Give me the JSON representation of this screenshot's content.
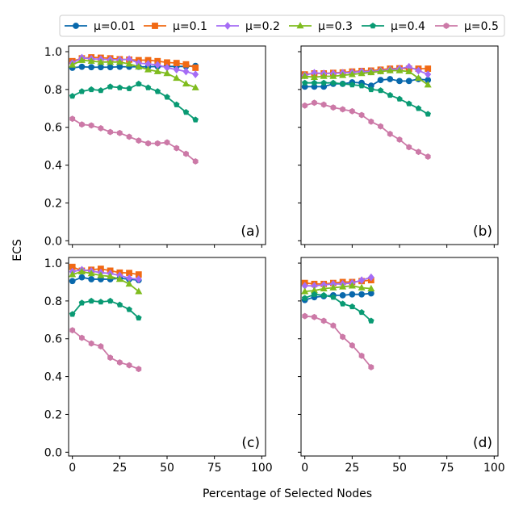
{
  "chart_data": {
    "type": "line",
    "xlabel": "Percentage of Selected Nodes",
    "ylabel": "ECS",
    "xlim": [
      -2,
      102
    ],
    "ylim": [
      -0.02,
      1.03
    ],
    "xticks": [
      0,
      25,
      50,
      75,
      100
    ],
    "yticks": [
      0.0,
      0.2,
      0.4,
      0.6,
      0.8,
      1.0
    ],
    "xtick_labels": [
      "0",
      "25",
      "50",
      "75",
      "100"
    ],
    "ytick_labels": [
      "0.0",
      "0.2",
      "0.4",
      "0.6",
      "0.8",
      "1.0"
    ],
    "grid": false,
    "legend_position": "top",
    "series_styles": [
      {
        "name": "μ=0.01",
        "color": "#0868ac",
        "marker": "circle"
      },
      {
        "name": "μ=0.1",
        "color": "#f16913",
        "marker": "square"
      },
      {
        "name": "μ=0.2",
        "color": "#a56cf5",
        "marker": "diamond"
      },
      {
        "name": "μ=0.3",
        "color": "#7fbc1e",
        "marker": "triangle"
      },
      {
        "name": "μ=0.4",
        "color": "#099a73",
        "marker": "pentagon"
      },
      {
        "name": "μ=0.5",
        "color": "#cc79a7",
        "marker": "hexagon"
      }
    ],
    "panels": [
      {
        "label": "(a)",
        "x": [
          0,
          5,
          10,
          15,
          20,
          25,
          30,
          35,
          40,
          45,
          50,
          55,
          60,
          65
        ],
        "series": [
          {
            "name": "μ=0.01",
            "values": [
              0.915,
              0.92,
              0.918,
              0.918,
              0.918,
              0.92,
              0.92,
              0.92,
              0.92,
              0.922,
              0.922,
              0.922,
              0.922,
              0.925
            ]
          },
          {
            "name": "μ=0.1",
            "values": [
              0.95,
              0.965,
              0.97,
              0.968,
              0.965,
              0.96,
              0.958,
              0.955,
              0.955,
              0.95,
              0.943,
              0.94,
              0.933,
              0.915
            ]
          },
          {
            "name": "μ=0.2",
            "values": [
              0.94,
              0.968,
              0.962,
              0.96,
              0.958,
              0.957,
              0.96,
              0.94,
              0.935,
              0.93,
              0.915,
              0.905,
              0.895,
              0.88
            ]
          },
          {
            "name": "μ=0.3",
            "values": [
              0.93,
              0.955,
              0.95,
              0.945,
              0.945,
              0.945,
              0.935,
              0.92,
              0.905,
              0.895,
              0.885,
              0.86,
              0.83,
              0.81
            ]
          },
          {
            "name": "μ=0.4",
            "values": [
              0.765,
              0.79,
              0.8,
              0.795,
              0.815,
              0.81,
              0.805,
              0.83,
              0.81,
              0.79,
              0.76,
              0.72,
              0.68,
              0.64
            ]
          },
          {
            "name": "μ=0.5",
            "values": [
              0.645,
              0.615,
              0.61,
              0.595,
              0.575,
              0.57,
              0.55,
              0.53,
              0.515,
              0.515,
              0.52,
              0.49,
              0.46,
              0.42
            ]
          }
        ]
      },
      {
        "label": "(b)",
        "x": [
          0,
          5,
          10,
          15,
          20,
          25,
          30,
          35,
          40,
          45,
          50,
          55,
          60,
          65
        ],
        "series": [
          {
            "name": "μ=0.01",
            "values": [
              0.815,
              0.815,
              0.815,
              0.83,
              0.83,
              0.838,
              0.835,
              0.82,
              0.85,
              0.855,
              0.845,
              0.845,
              0.855,
              0.85
            ]
          },
          {
            "name": "μ=0.1",
            "values": [
              0.88,
              0.885,
              0.885,
              0.888,
              0.89,
              0.895,
              0.898,
              0.9,
              0.905,
              0.91,
              0.912,
              0.91,
              0.91,
              0.91
            ]
          },
          {
            "name": "μ=0.2",
            "values": [
              0.875,
              0.888,
              0.885,
              0.885,
              0.888,
              0.89,
              0.895,
              0.895,
              0.9,
              0.905,
              0.91,
              0.92,
              0.9,
              0.88
            ]
          },
          {
            "name": "μ=0.3",
            "values": [
              0.87,
              0.865,
              0.87,
              0.87,
              0.875,
              0.88,
              0.885,
              0.89,
              0.895,
              0.9,
              0.9,
              0.895,
              0.86,
              0.825
            ]
          },
          {
            "name": "μ=0.4",
            "values": [
              0.835,
              0.835,
              0.835,
              0.835,
              0.83,
              0.825,
              0.82,
              0.8,
              0.795,
              0.77,
              0.75,
              0.725,
              0.7,
              0.67
            ]
          },
          {
            "name": "μ=0.5",
            "values": [
              0.715,
              0.73,
              0.72,
              0.705,
              0.695,
              0.685,
              0.665,
              0.63,
              0.605,
              0.565,
              0.535,
              0.495,
              0.47,
              0.445
            ]
          }
        ]
      },
      {
        "label": "(c)",
        "x": [
          0,
          5,
          10,
          15,
          20,
          25,
          30,
          35
        ],
        "series": [
          {
            "name": "μ=0.01",
            "values": [
              0.905,
              0.925,
              0.915,
              0.915,
              0.915,
              0.92,
              0.915,
              0.91
            ]
          },
          {
            "name": "μ=0.1",
            "values": [
              0.98,
              0.96,
              0.965,
              0.97,
              0.96,
              0.95,
              0.948,
              0.94
            ]
          },
          {
            "name": "μ=0.2",
            "values": [
              0.955,
              0.965,
              0.958,
              0.95,
              0.945,
              0.935,
              0.92,
              0.915
            ]
          },
          {
            "name": "μ=0.3",
            "values": [
              0.94,
              0.955,
              0.945,
              0.935,
              0.93,
              0.915,
              0.89,
              0.85
            ]
          },
          {
            "name": "μ=0.4",
            "values": [
              0.73,
              0.79,
              0.8,
              0.795,
              0.8,
              0.78,
              0.755,
              0.71
            ]
          },
          {
            "name": "μ=0.5",
            "values": [
              0.645,
              0.605,
              0.575,
              0.56,
              0.5,
              0.475,
              0.46,
              0.44
            ]
          }
        ]
      },
      {
        "label": "(d)",
        "x": [
          0,
          5,
          10,
          15,
          20,
          25,
          30,
          35
        ],
        "series": [
          {
            "name": "μ=0.01",
            "values": [
              0.805,
              0.82,
              0.825,
              0.83,
              0.83,
              0.835,
              0.835,
              0.84
            ]
          },
          {
            "name": "μ=0.1",
            "values": [
              0.895,
              0.89,
              0.89,
              0.895,
              0.9,
              0.9,
              0.905,
              0.91
            ]
          },
          {
            "name": "μ=0.2",
            "values": [
              0.88,
              0.88,
              0.885,
              0.89,
              0.89,
              0.895,
              0.91,
              0.925
            ]
          },
          {
            "name": "μ=0.3",
            "values": [
              0.85,
              0.855,
              0.865,
              0.87,
              0.875,
              0.88,
              0.87,
              0.865
            ]
          },
          {
            "name": "μ=0.4",
            "values": [
              0.815,
              0.835,
              0.83,
              0.82,
              0.785,
              0.77,
              0.74,
              0.695
            ]
          },
          {
            "name": "μ=0.5",
            "values": [
              0.72,
              0.715,
              0.695,
              0.67,
              0.61,
              0.565,
              0.51,
              0.45
            ]
          }
        ]
      }
    ]
  }
}
